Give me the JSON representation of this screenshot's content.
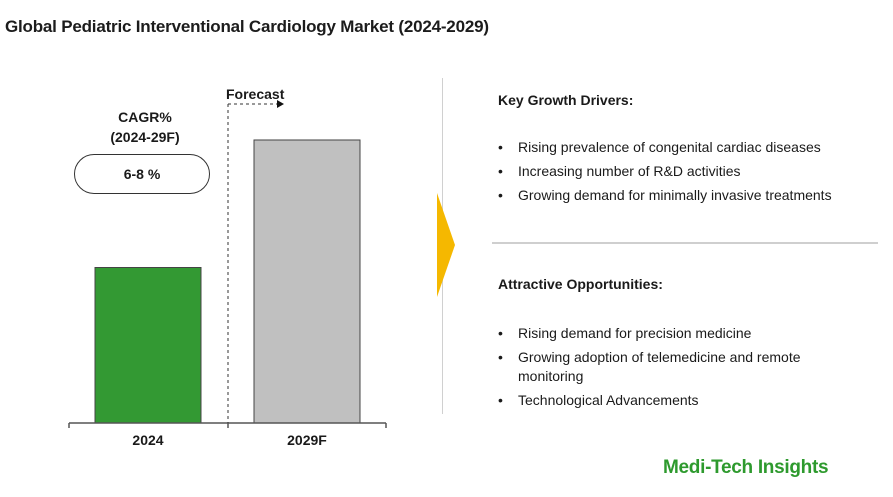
{
  "title": "Global Pediatric Interventional Cardiology Market (2024-2029)",
  "cagr": {
    "label_line1": "CAGR%",
    "label_line2": "(2024-29F)",
    "value": "6-8 %"
  },
  "forecast_label": "Forecast",
  "chart_data": {
    "type": "bar",
    "categories": [
      "2024",
      "2029F"
    ],
    "values": [
      50,
      91
    ],
    "colors": [
      "#339933",
      "#c0c0c0"
    ],
    "ylim": [
      0,
      100
    ],
    "title": "",
    "xlabel": "",
    "ylabel": ""
  },
  "drivers": {
    "title": "Key Growth Drivers:",
    "items": [
      "Rising prevalence of congenital cardiac diseases",
      "Increasing number of R&D activities",
      "Growing demand for minimally invasive treatments"
    ]
  },
  "opportunities": {
    "title": "Attractive Opportunities:",
    "items": [
      "Rising demand for precision medicine",
      "Growing adoption of telemedicine and remote monitoring",
      "Technological Advancements"
    ]
  },
  "brand": "Medi-Tech Insights",
  "colors": {
    "accent": "#f5b800",
    "brand_green": "#2e9a2e"
  }
}
